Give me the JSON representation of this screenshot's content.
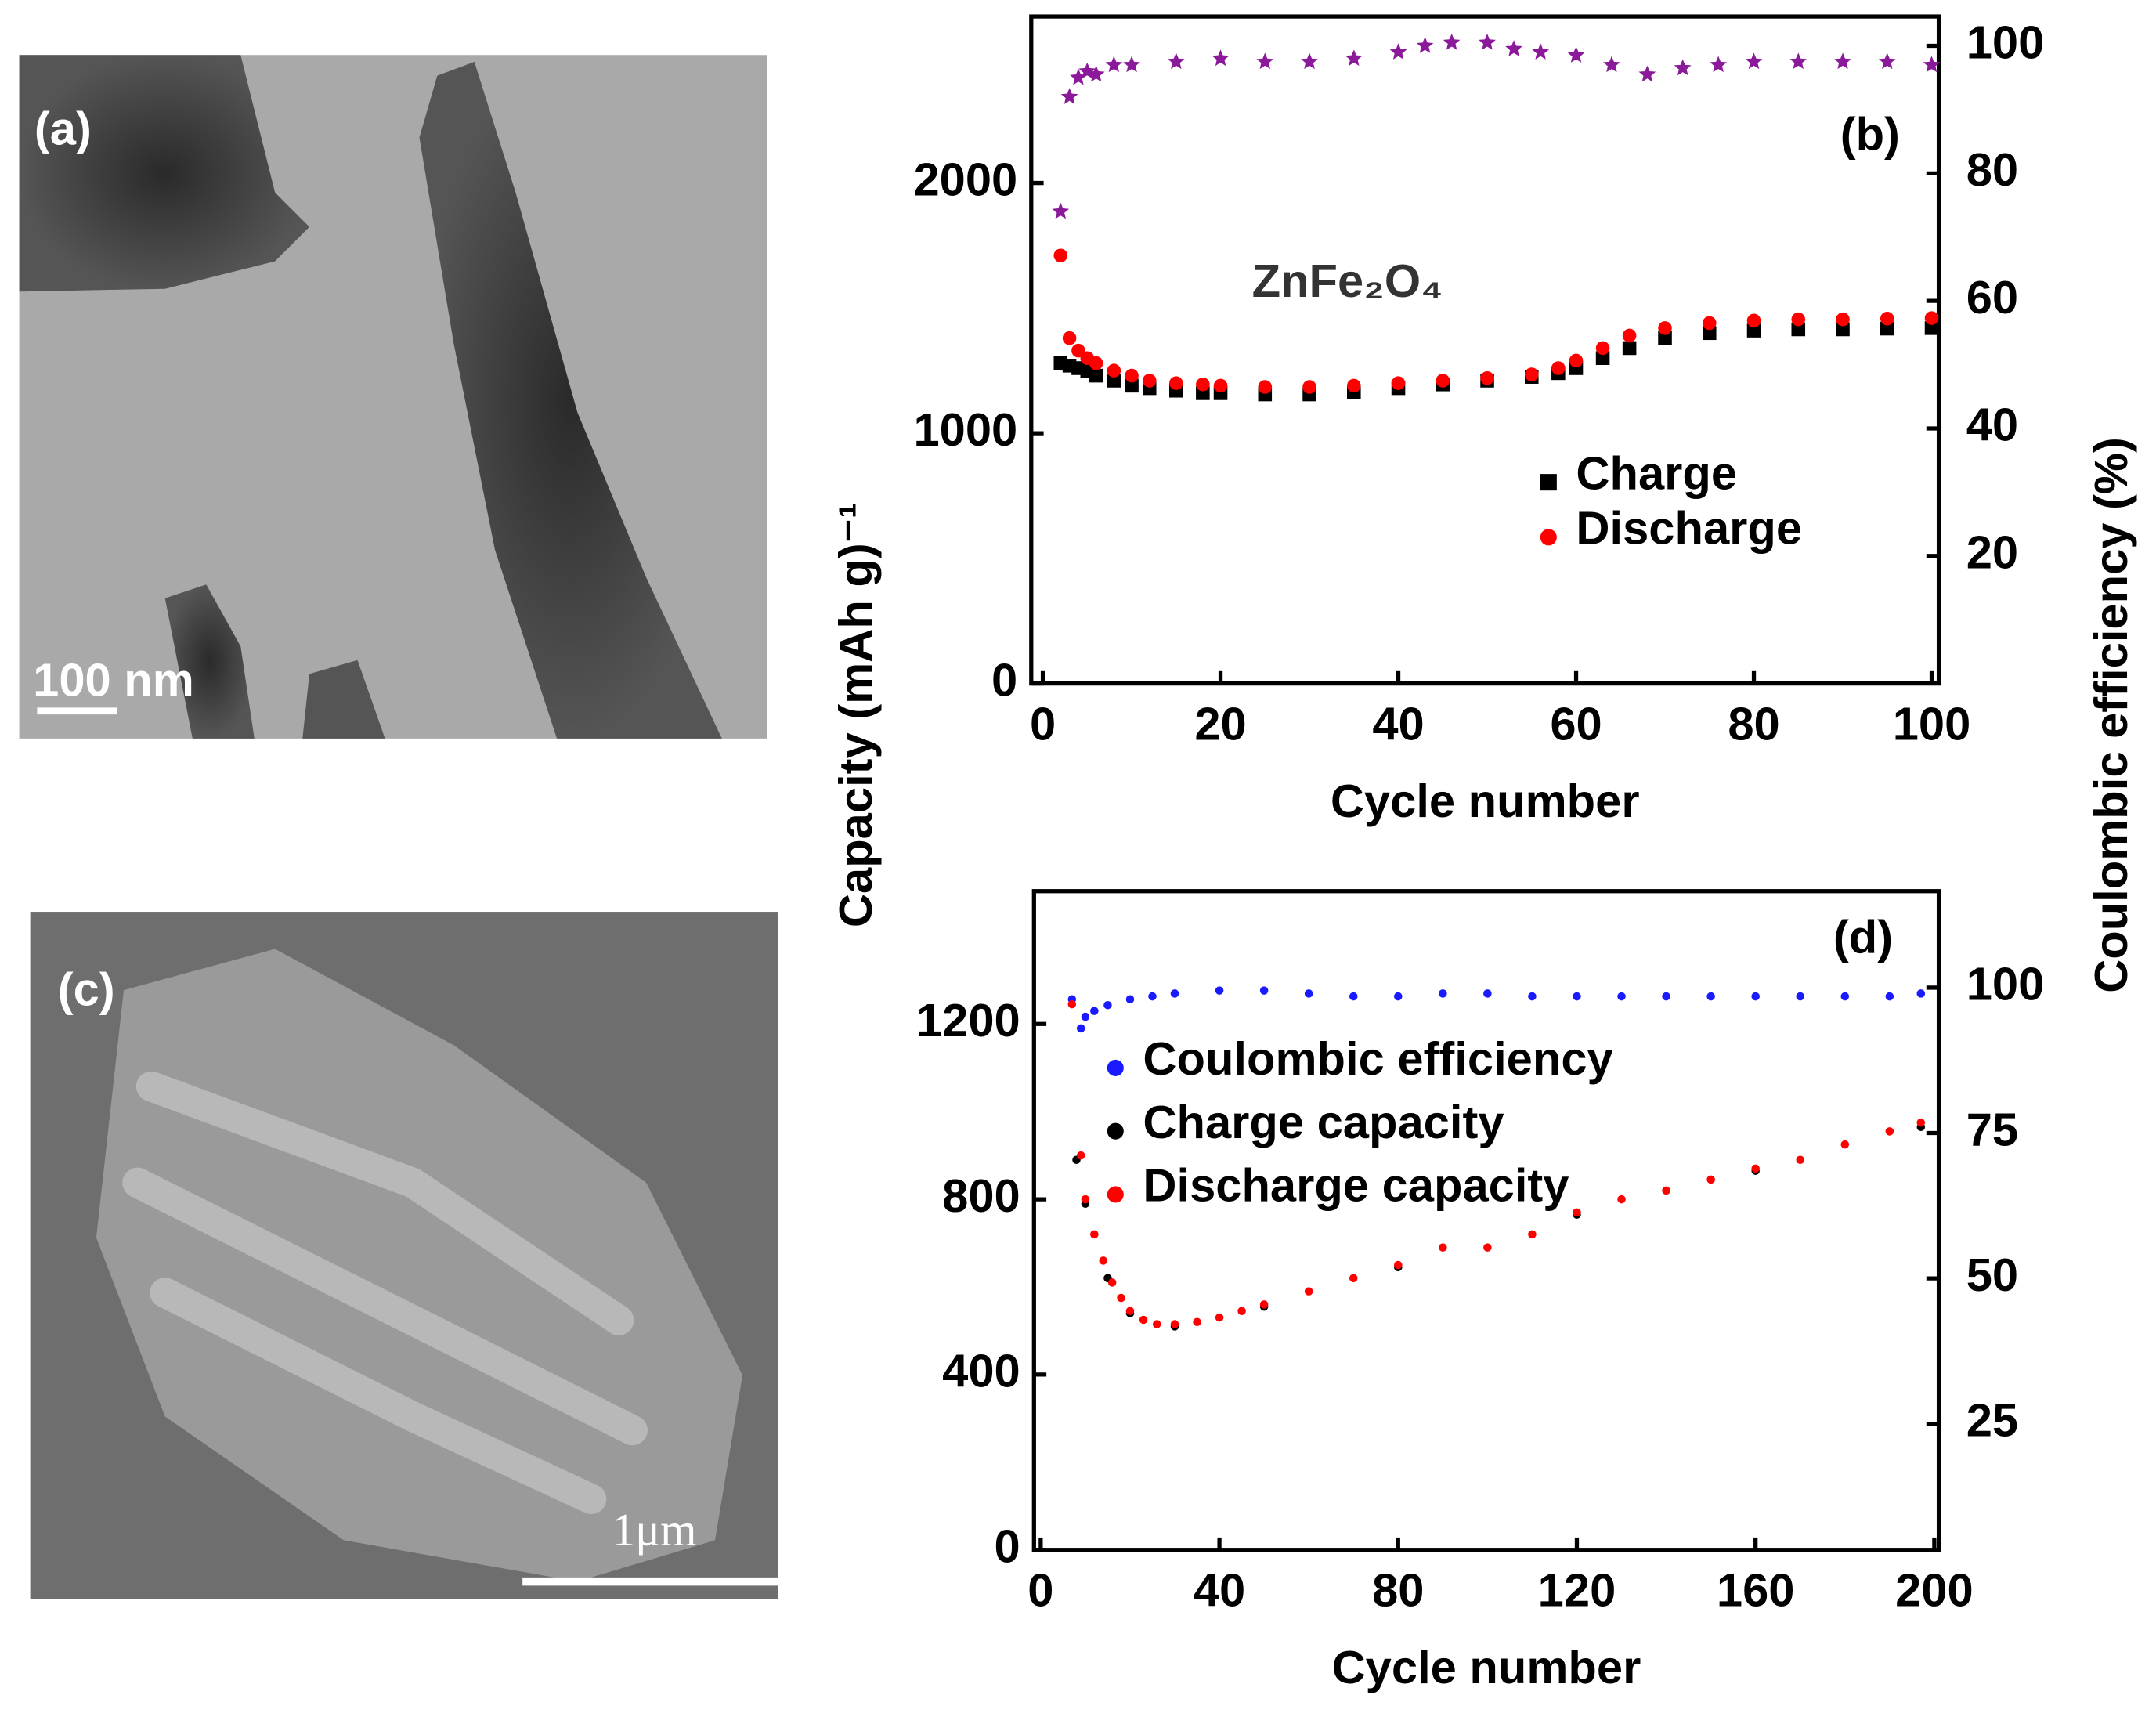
{
  "panels": [
    {
      "label": "(a)",
      "scale_bar": "100 nm"
    },
    {
      "label": "(c)",
      "scale_bar": "1μm"
    }
  ],
  "chart_data": [
    {
      "type": "scatter",
      "annotations": [
        "(b)",
        "ZnFe₂O₄"
      ],
      "xlabel": "Cycle number",
      "ylabel": "Capacity (mAh g)⁻¹",
      "y2label": "Coulombic efficiency (%)",
      "xlim": [
        -1.3,
        100.8
      ],
      "xticks": [
        0,
        20,
        40,
        60,
        80,
        100
      ],
      "ylim": [
        0,
        2665
      ],
      "yticks": [
        0,
        1000,
        2000
      ],
      "y2lim": [
        0,
        104.6
      ],
      "y2ticks": [
        20,
        40,
        60,
        80,
        100
      ],
      "legend": "center right",
      "series": [
        {
          "name": "Charge",
          "color": "#000000",
          "marker": "square",
          "x": [
            2,
            3,
            4,
            5,
            6,
            8,
            10,
            12,
            15,
            18,
            20,
            25,
            30,
            35,
            40,
            45,
            50,
            55,
            58,
            60,
            63,
            66,
            70,
            75,
            80,
            85,
            90,
            95,
            100
          ],
          "values": [
            1280,
            1270,
            1260,
            1250,
            1230,
            1210,
            1190,
            1180,
            1170,
            1160,
            1160,
            1155,
            1155,
            1165,
            1180,
            1195,
            1210,
            1225,
            1240,
            1260,
            1300,
            1340,
            1380,
            1400,
            1410,
            1415,
            1415,
            1418,
            1420
          ]
        },
        {
          "name": "Discharge",
          "color": "#ff0000",
          "marker": "circle",
          "x": [
            2,
            3,
            4,
            5,
            6,
            8,
            10,
            12,
            15,
            18,
            20,
            25,
            30,
            35,
            40,
            45,
            50,
            55,
            58,
            60,
            63,
            66,
            70,
            75,
            80,
            85,
            90,
            95,
            100
          ],
          "values": [
            1710,
            1380,
            1330,
            1300,
            1280,
            1250,
            1230,
            1210,
            1200,
            1195,
            1190,
            1185,
            1185,
            1190,
            1200,
            1210,
            1220,
            1235,
            1260,
            1290,
            1340,
            1390,
            1420,
            1440,
            1450,
            1455,
            1455,
            1458,
            1460
          ]
        },
        {
          "color": "#8b1a9a",
          "marker": "star",
          "axis": "y2",
          "x": [
            2,
            3,
            4,
            5,
            6,
            8,
            10,
            15,
            20,
            25,
            30,
            35,
            40,
            43,
            46,
            50,
            53,
            56,
            60,
            64,
            68,
            72,
            76,
            80,
            85,
            90,
            95,
            100
          ],
          "values": [
            74,
            92,
            95,
            96,
            95.5,
            97,
            97,
            97.5,
            98,
            97.5,
            97.5,
            98,
            99,
            100,
            100.5,
            100.5,
            99.5,
            99,
            98.5,
            97,
            95.5,
            96.5,
            97,
            97.5,
            97.5,
            97.5,
            97.5,
            97
          ]
        }
      ]
    },
    {
      "type": "scatter",
      "annotations": [
        "(d)"
      ],
      "xlabel": "Cycle number",
      "xlim": [
        -1.5,
        201
      ],
      "xticks": [
        0,
        40,
        80,
        120,
        160,
        200
      ],
      "ylim": [
        0,
        1503
      ],
      "yticks": [
        0,
        400,
        800,
        1200
      ],
      "y2lim": [
        3.3,
        116.6
      ],
      "y2ticks": [
        25,
        50,
        75,
        100
      ],
      "legend": "upper left",
      "series": [
        {
          "name": "Coulombic efficiency",
          "color": "#1a1aff",
          "marker": "circle",
          "axis": "y2",
          "x": [
            7,
            9,
            10,
            12,
            15,
            20,
            25,
            30,
            40,
            50,
            60,
            70,
            80,
            90,
            100,
            110,
            120,
            130,
            140,
            150,
            160,
            170,
            180,
            190,
            197
          ],
          "values": [
            98,
            93,
            95,
            96,
            97,
            98,
            98.5,
            99,
            99.5,
            99.5,
            99,
            98.5,
            98.5,
            99,
            99,
            98.5,
            98.5,
            98.5,
            98.5,
            98.5,
            98.5,
            98.5,
            98.5,
            98.5,
            99
          ]
        },
        {
          "name": "Charge capacity",
          "color": "#000000",
          "marker": "circle",
          "x": [
            8,
            10,
            15,
            20,
            30,
            50,
            80,
            120,
            160,
            197
          ],
          "values": [
            890,
            790,
            620,
            540,
            510,
            555,
            645,
            765,
            865,
            965
          ]
        },
        {
          "name": "Discharge capacity",
          "color": "#ff0000",
          "marker": "circle",
          "x": [
            7,
            9,
            10,
            12,
            14,
            16,
            18,
            20,
            23,
            26,
            30,
            35,
            40,
            45,
            50,
            60,
            70,
            80,
            90,
            100,
            110,
            120,
            130,
            140,
            150,
            160,
            170,
            180,
            190,
            197
          ],
          "values": [
            1245,
            900,
            800,
            720,
            660,
            610,
            575,
            545,
            525,
            515,
            515,
            520,
            530,
            545,
            560,
            590,
            620,
            650,
            690,
            690,
            720,
            770,
            800,
            820,
            845,
            870,
            890,
            925,
            955,
            975
          ]
        }
      ]
    }
  ]
}
